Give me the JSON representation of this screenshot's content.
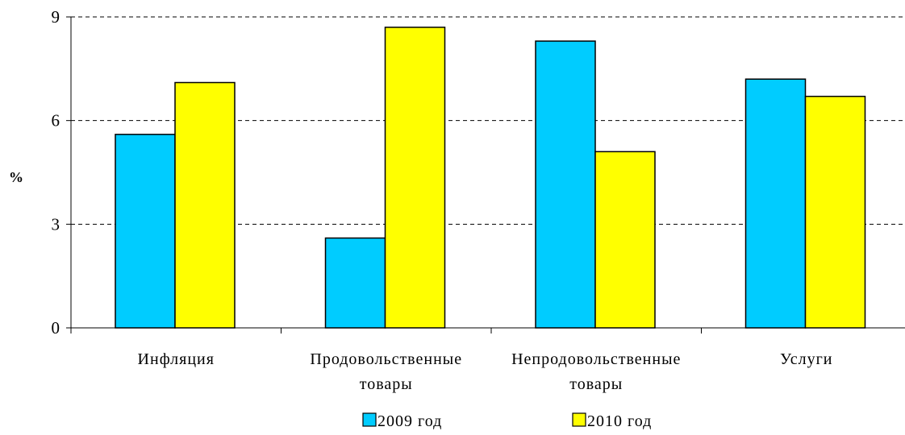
{
  "chart_data": {
    "type": "bar",
    "title": "",
    "xlabel": "",
    "ylabel": "%",
    "ylim": [
      0,
      9
    ],
    "yticks": [
      0,
      3,
      6,
      9
    ],
    "grid": "horizontal dashed",
    "legend_position": "bottom",
    "categories": [
      [
        "Инфляция"
      ],
      [
        "Продовольственные",
        "товары"
      ],
      [
        "Непродовольственные",
        "товары"
      ],
      [
        "Услуги"
      ]
    ],
    "series": [
      {
        "name": "2009 год",
        "color": "#00CCFF",
        "values": [
          5.6,
          2.6,
          8.3,
          7.2
        ]
      },
      {
        "name": "2010 год",
        "color": "#FFFF00",
        "values": [
          7.1,
          8.7,
          5.1,
          6.7
        ]
      }
    ]
  }
}
